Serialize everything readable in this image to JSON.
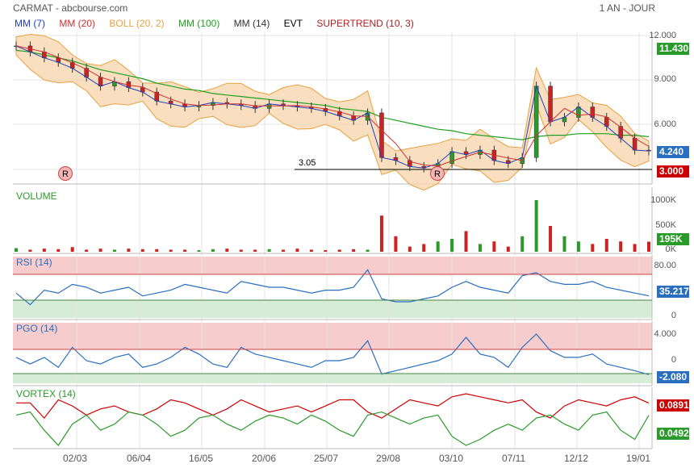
{
  "header": {
    "title": "CARMAT - abcbourse.com",
    "period": "1 AN - JOUR"
  },
  "legend": [
    {
      "label": "MM (7)",
      "color": "#1f3fbf"
    },
    {
      "label": "MM (20)",
      "color": "#d03030"
    },
    {
      "label": "BOLL (20, 2)",
      "color": "#e8a040"
    },
    {
      "label": "MM (100)",
      "color": "#20a020"
    },
    {
      "label": "MM (14)",
      "color": "#333333"
    },
    {
      "label": "EVT",
      "color": "#000000"
    },
    {
      "label": "SUPERTREND (10, 3)",
      "color": "#b02020"
    }
  ],
  "panels": {
    "price": {
      "y_ticks": [
        "12.000",
        "9.000",
        "6.000"
      ],
      "badges": [
        {
          "text": "11.430",
          "color": "#2a9a2a"
        },
        {
          "text": "4.240",
          "color": "#2a6fbf"
        },
        {
          "text": "3.000",
          "color": "#cc0000"
        }
      ]
    },
    "volume": {
      "title": "VOLUME",
      "y_ticks": [
        "1000K",
        "500K",
        "0K"
      ],
      "badge": {
        "text": "195K",
        "color": "#2a9a2a"
      }
    },
    "rsi": {
      "title": "RSI (14)",
      "y_ticks": [
        "80.00",
        "0"
      ],
      "badge": {
        "text": "35.217",
        "color": "#2a6fbf"
      }
    },
    "pgo": {
      "title": "PGO (14)",
      "y_ticks": [
        "4.000",
        "0"
      ],
      "badge": {
        "text": "-2.080",
        "color": "#2a6fbf"
      }
    },
    "vortex": {
      "title": "VORTEX (14)",
      "y_ticks": [],
      "badges": [
        {
          "text": "0.0891",
          "color": "#cc0000"
        },
        {
          "text": "0.0492",
          "color": "#2a9a2a"
        }
      ]
    }
  },
  "annotations": {
    "support_label": "3.05",
    "r_marker": "R"
  },
  "colors": {
    "up": "#2a9a2a",
    "down": "#cc2222",
    "line_blue": "#2a6fbf",
    "band_fill": "#f7d7b0",
    "band_line": "#e8a040"
  },
  "chart_data": {
    "type": "line",
    "x_ticks": [
      "02/03",
      "06/04",
      "16/05",
      "20/06",
      "25/07",
      "29/08",
      "03/10",
      "07/11",
      "12/12",
      "19/01"
    ],
    "series": [
      {
        "name": "Close",
        "values": [
          11.3,
          10.9,
          10.5,
          10.2,
          9.8,
          9.2,
          8.6,
          8.9,
          8.5,
          8.2,
          7.6,
          7.4,
          7.2,
          7.3,
          7.5,
          7.4,
          7.3,
          7.1,
          7.4,
          7.3,
          7.2,
          7.1,
          6.9,
          6.6,
          6.3,
          6.8,
          3.8,
          3.6,
          3.2,
          3.1,
          3.4,
          4.2,
          4.0,
          4.3,
          3.6,
          3.4,
          3.8,
          8.6,
          6.2,
          6.5,
          7.2,
          6.5,
          5.9,
          5.1,
          4.3,
          4.24
        ]
      },
      {
        "name": "MM (100)",
        "values": [
          11.0,
          10.9,
          10.7,
          10.5,
          10.3,
          10.0,
          9.7,
          9.5,
          9.3,
          9.1,
          8.8,
          8.6,
          8.4,
          8.3,
          8.1,
          8.0,
          7.9,
          7.8,
          7.7,
          7.6,
          7.5,
          7.4,
          7.3,
          7.1,
          7.0,
          6.9,
          6.5,
          6.3,
          6.1,
          5.9,
          5.7,
          5.6,
          5.4,
          5.3,
          5.2,
          5.1,
          5.0,
          5.2,
          5.3,
          5.3,
          5.4,
          5.4,
          5.4,
          5.3,
          5.3,
          5.2
        ]
      }
    ],
    "volume": [
      70,
      40,
      60,
      50,
      90,
      40,
      60,
      40,
      60,
      50,
      50,
      40,
      40,
      30,
      50,
      60,
      40,
      40,
      50,
      40,
      60,
      40,
      30,
      40,
      50,
      40,
      700,
      300,
      100,
      150,
      200,
      250,
      400,
      150,
      200,
      100,
      300,
      1000,
      500,
      300,
      200,
      150,
      250,
      200,
      150,
      195
    ],
    "rsi": [
      40,
      20,
      45,
      40,
      55,
      50,
      40,
      45,
      50,
      35,
      40,
      45,
      55,
      50,
      45,
      40,
      60,
      55,
      50,
      50,
      45,
      40,
      45,
      45,
      50,
      80,
      30,
      25,
      25,
      30,
      35,
      50,
      60,
      50,
      45,
      40,
      70,
      75,
      60,
      55,
      55,
      60,
      50,
      45,
      40,
      35.2
    ],
    "pgo": [
      0.5,
      -0.5,
      0.5,
      -1.0,
      2.0,
      0.0,
      -0.5,
      0.5,
      1.0,
      -1.0,
      -0.5,
      0.5,
      2.0,
      1.0,
      -0.5,
      -1.0,
      2.0,
      1.0,
      0.5,
      0.0,
      -0.5,
      -1.0,
      0.0,
      0.0,
      0.5,
      3.0,
      -2.0,
      -1.5,
      -1.0,
      -0.5,
      0.0,
      1.0,
      3.5,
      1.0,
      0.5,
      -1.0,
      2.0,
      4.0,
      1.5,
      0.5,
      0.5,
      1.0,
      -0.5,
      -1.0,
      -1.5,
      -2.08
    ],
    "vortex_plus": [
      0.05,
      0.06,
      0.0,
      -0.05,
      0.02,
      0.05,
      0.0,
      0.02,
      0.06,
      0.05,
      0.02,
      -0.02,
      0.0,
      0.04,
      0.05,
      0.02,
      0.0,
      0.03,
      0.05,
      0.04,
      0.02,
      0.05,
      0.03,
      0.0,
      -0.02,
      0.05,
      0.06,
      0.04,
      0.02,
      0.04,
      0.05,
      -0.02,
      -0.05,
      -0.03,
      0.0,
      0.02,
      0.0,
      0.04,
      0.05,
      0.02,
      0.0,
      0.05,
      0.06,
      0.0,
      -0.03,
      0.0492
    ],
    "vortex_minus": [
      0.09,
      0.09,
      0.04,
      0.1,
      0.08,
      0.05,
      0.07,
      0.08,
      0.06,
      0.05,
      0.07,
      0.1,
      0.09,
      0.07,
      0.05,
      0.07,
      0.1,
      0.08,
      0.06,
      0.07,
      0.08,
      0.06,
      0.08,
      0.1,
      0.1,
      0.06,
      0.04,
      0.07,
      0.1,
      0.09,
      0.08,
      0.11,
      0.12,
      0.11,
      0.1,
      0.09,
      0.1,
      0.06,
      0.04,
      0.08,
      0.1,
      0.09,
      0.08,
      0.1,
      0.11,
      0.0891
    ],
    "support_level": 3.0
  }
}
